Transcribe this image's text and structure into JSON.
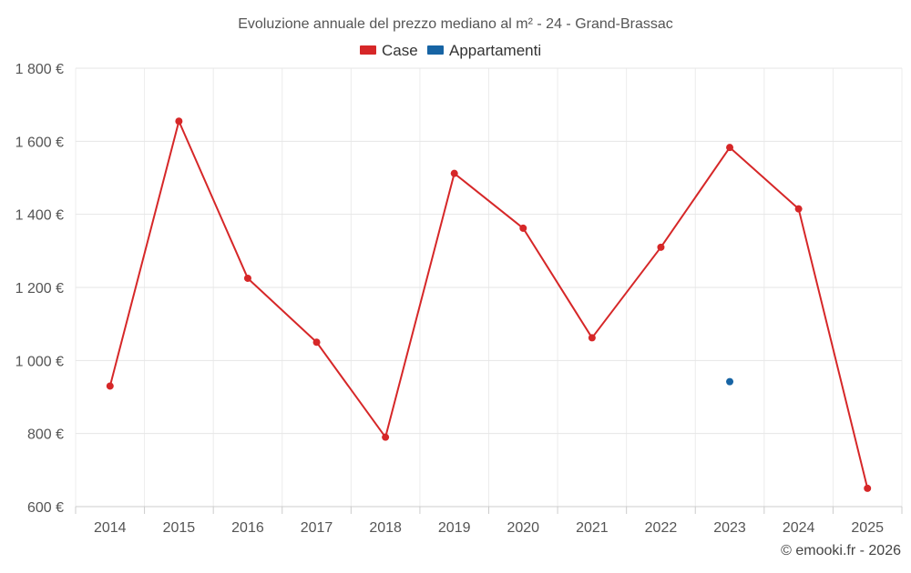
{
  "chart_data": {
    "type": "line",
    "title": "Evoluzione annuale del prezzo mediano al m² - 24 - Grand-Brassac",
    "categories": [
      "2014",
      "2015",
      "2016",
      "2017",
      "2018",
      "2019",
      "2020",
      "2021",
      "2022",
      "2023",
      "2024",
      "2025"
    ],
    "series": [
      {
        "name": "Case",
        "color": "#d62728",
        "values": [
          930,
          1655,
          1225,
          1050,
          790,
          1512,
          1362,
          1062,
          1310,
          1583,
          1415,
          650
        ]
      },
      {
        "name": "Appartamenti",
        "color": "#1764a4",
        "values": [
          null,
          null,
          null,
          null,
          null,
          null,
          null,
          null,
          null,
          942,
          null,
          null
        ]
      }
    ],
    "ylim": [
      600,
      1800
    ],
    "yticks": [
      600,
      800,
      1000,
      1200,
      1400,
      1600,
      1800
    ],
    "ytick_labels": [
      "600 €",
      "800 €",
      "1 000 €",
      "1 200 €",
      "1 400 €",
      "1 600 €",
      "1 800 €"
    ],
    "legend_position": "top-center",
    "grid": true,
    "credit": "© emooki.fr - 2026"
  }
}
